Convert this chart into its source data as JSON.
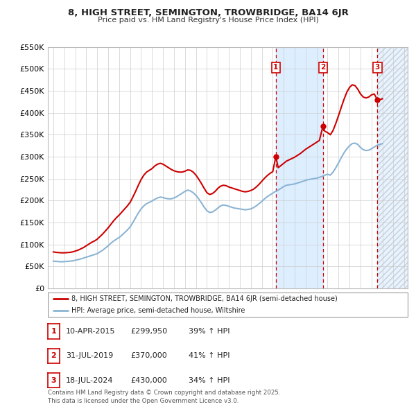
{
  "title": "8, HIGH STREET, SEMINGTON, TROWBRIDGE, BA14 6JR",
  "subtitle": "Price paid vs. HM Land Registry's House Price Index (HPI)",
  "hpi_label": "HPI: Average price, semi-detached house, Wiltshire",
  "price_label": "8, HIGH STREET, SEMINGTON, TROWBRIDGE, BA14 6JR (semi-detached house)",
  "price_color": "#cc0000",
  "hpi_color": "#8ab4d4",
  "background_color": "#ffffff",
  "grid_color": "#cccccc",
  "ylim": [
    0,
    550000
  ],
  "yticks": [
    0,
    50000,
    100000,
    150000,
    200000,
    250000,
    300000,
    350000,
    400000,
    450000,
    500000,
    550000
  ],
  "xlim_start": 1994.5,
  "xlim_end": 2027.3,
  "xticks": [
    1995,
    1996,
    1997,
    1998,
    1999,
    2000,
    2001,
    2002,
    2003,
    2004,
    2005,
    2006,
    2007,
    2008,
    2009,
    2010,
    2011,
    2012,
    2013,
    2014,
    2015,
    2016,
    2017,
    2018,
    2019,
    2020,
    2021,
    2022,
    2023,
    2024,
    2025,
    2026,
    2027
  ],
  "transactions": [
    {
      "label": "1",
      "date": "10-APR-2015",
      "year": 2015.28,
      "price": 299950,
      "hpi_pct": "39%",
      "hpi_dir": "↑"
    },
    {
      "label": "2",
      "date": "31-JUL-2019",
      "year": 2019.58,
      "price": 370000,
      "hpi_pct": "41%",
      "hpi_dir": "↑"
    },
    {
      "label": "3",
      "date": "18-JUL-2024",
      "year": 2024.54,
      "price": 430000,
      "hpi_pct": "34%",
      "hpi_dir": "↑"
    }
  ],
  "hpi_data": [
    [
      1995.0,
      62000
    ],
    [
      1995.25,
      61500
    ],
    [
      1995.5,
      61000
    ],
    [
      1995.75,
      60500
    ],
    [
      1996.0,
      61000
    ],
    [
      1996.25,
      61500
    ],
    [
      1996.5,
      62000
    ],
    [
      1996.75,
      62500
    ],
    [
      1997.0,
      64000
    ],
    [
      1997.25,
      65500
    ],
    [
      1997.5,
      67000
    ],
    [
      1997.75,
      69000
    ],
    [
      1998.0,
      71000
    ],
    [
      1998.25,
      73000
    ],
    [
      1998.5,
      75000
    ],
    [
      1998.75,
      77000
    ],
    [
      1999.0,
      79000
    ],
    [
      1999.25,
      83000
    ],
    [
      1999.5,
      87000
    ],
    [
      1999.75,
      92000
    ],
    [
      2000.0,
      97000
    ],
    [
      2000.25,
      103000
    ],
    [
      2000.5,
      108000
    ],
    [
      2000.75,
      112000
    ],
    [
      2001.0,
      116000
    ],
    [
      2001.25,
      121000
    ],
    [
      2001.5,
      127000
    ],
    [
      2001.75,
      133000
    ],
    [
      2002.0,
      140000
    ],
    [
      2002.25,
      150000
    ],
    [
      2002.5,
      161000
    ],
    [
      2002.75,
      172000
    ],
    [
      2003.0,
      181000
    ],
    [
      2003.25,
      188000
    ],
    [
      2003.5,
      193000
    ],
    [
      2003.75,
      196000
    ],
    [
      2004.0,
      199000
    ],
    [
      2004.25,
      203000
    ],
    [
      2004.5,
      206000
    ],
    [
      2004.75,
      208000
    ],
    [
      2005.0,
      207000
    ],
    [
      2005.25,
      205000
    ],
    [
      2005.5,
      204000
    ],
    [
      2005.75,
      204000
    ],
    [
      2006.0,
      206000
    ],
    [
      2006.25,
      209000
    ],
    [
      2006.5,
      213000
    ],
    [
      2006.75,
      217000
    ],
    [
      2007.0,
      221000
    ],
    [
      2007.25,
      224000
    ],
    [
      2007.5,
      222000
    ],
    [
      2007.75,
      218000
    ],
    [
      2008.0,
      212000
    ],
    [
      2008.25,
      204000
    ],
    [
      2008.5,
      195000
    ],
    [
      2008.75,
      185000
    ],
    [
      2009.0,
      177000
    ],
    [
      2009.25,
      173000
    ],
    [
      2009.5,
      174000
    ],
    [
      2009.75,
      178000
    ],
    [
      2010.0,
      183000
    ],
    [
      2010.25,
      188000
    ],
    [
      2010.5,
      190000
    ],
    [
      2010.75,
      189000
    ],
    [
      2011.0,
      187000
    ],
    [
      2011.25,
      185000
    ],
    [
      2011.5,
      183000
    ],
    [
      2011.75,
      182000
    ],
    [
      2012.0,
      181000
    ],
    [
      2012.25,
      180000
    ],
    [
      2012.5,
      179000
    ],
    [
      2012.75,
      180000
    ],
    [
      2013.0,
      181000
    ],
    [
      2013.25,
      184000
    ],
    [
      2013.5,
      188000
    ],
    [
      2013.75,
      193000
    ],
    [
      2014.0,
      198000
    ],
    [
      2014.25,
      204000
    ],
    [
      2014.5,
      209000
    ],
    [
      2014.75,
      213000
    ],
    [
      2015.0,
      217000
    ],
    [
      2015.25,
      221000
    ],
    [
      2015.5,
      224000
    ],
    [
      2015.75,
      228000
    ],
    [
      2016.0,
      232000
    ],
    [
      2016.25,
      235000
    ],
    [
      2016.5,
      236000
    ],
    [
      2016.75,
      237000
    ],
    [
      2017.0,
      238000
    ],
    [
      2017.25,
      240000
    ],
    [
      2017.5,
      242000
    ],
    [
      2017.75,
      244000
    ],
    [
      2018.0,
      246000
    ],
    [
      2018.25,
      248000
    ],
    [
      2018.5,
      249000
    ],
    [
      2018.75,
      250000
    ],
    [
      2019.0,
      251000
    ],
    [
      2019.25,
      253000
    ],
    [
      2019.5,
      255000
    ],
    [
      2019.75,
      258000
    ],
    [
      2020.0,
      260000
    ],
    [
      2020.25,
      258000
    ],
    [
      2020.5,
      265000
    ],
    [
      2020.75,
      275000
    ],
    [
      2021.0,
      286000
    ],
    [
      2021.25,
      298000
    ],
    [
      2021.5,
      309000
    ],
    [
      2021.75,
      318000
    ],
    [
      2022.0,
      325000
    ],
    [
      2022.25,
      330000
    ],
    [
      2022.5,
      331000
    ],
    [
      2022.75,
      328000
    ],
    [
      2023.0,
      321000
    ],
    [
      2023.25,
      316000
    ],
    [
      2023.5,
      314000
    ],
    [
      2023.75,
      315000
    ],
    [
      2024.0,
      318000
    ],
    [
      2024.25,
      322000
    ],
    [
      2024.5,
      326000
    ],
    [
      2024.75,
      328000
    ],
    [
      2025.0,
      330000
    ]
  ],
  "price_data": [
    [
      1995.0,
      83000
    ],
    [
      1995.25,
      82000
    ],
    [
      1995.5,
      81500
    ],
    [
      1995.75,
      81000
    ],
    [
      1996.0,
      81000
    ],
    [
      1996.25,
      81500
    ],
    [
      1996.5,
      82000
    ],
    [
      1996.75,
      83000
    ],
    [
      1997.0,
      85000
    ],
    [
      1997.25,
      87000
    ],
    [
      1997.5,
      90000
    ],
    [
      1997.75,
      93000
    ],
    [
      1998.0,
      97000
    ],
    [
      1998.25,
      101000
    ],
    [
      1998.5,
      105000
    ],
    [
      1998.75,
      108000
    ],
    [
      1999.0,
      112000
    ],
    [
      1999.25,
      118000
    ],
    [
      1999.5,
      124000
    ],
    [
      1999.75,
      131000
    ],
    [
      2000.0,
      138000
    ],
    [
      2000.25,
      146000
    ],
    [
      2000.5,
      154000
    ],
    [
      2000.75,
      161000
    ],
    [
      2001.0,
      167000
    ],
    [
      2001.25,
      174000
    ],
    [
      2001.5,
      181000
    ],
    [
      2001.75,
      188000
    ],
    [
      2002.0,
      196000
    ],
    [
      2002.25,
      208000
    ],
    [
      2002.5,
      221000
    ],
    [
      2002.75,
      235000
    ],
    [
      2003.0,
      248000
    ],
    [
      2003.25,
      258000
    ],
    [
      2003.5,
      265000
    ],
    [
      2003.75,
      269000
    ],
    [
      2004.0,
      273000
    ],
    [
      2004.25,
      279000
    ],
    [
      2004.5,
      283000
    ],
    [
      2004.75,
      285000
    ],
    [
      2005.0,
      283000
    ],
    [
      2005.25,
      279000
    ],
    [
      2005.5,
      275000
    ],
    [
      2005.75,
      271000
    ],
    [
      2006.0,
      268000
    ],
    [
      2006.25,
      266000
    ],
    [
      2006.5,
      265000
    ],
    [
      2006.75,
      265000
    ],
    [
      2007.0,
      267000
    ],
    [
      2007.25,
      270000
    ],
    [
      2007.5,
      269000
    ],
    [
      2007.75,
      265000
    ],
    [
      2008.0,
      258000
    ],
    [
      2008.25,
      249000
    ],
    [
      2008.5,
      239000
    ],
    [
      2008.75,
      228000
    ],
    [
      2009.0,
      218000
    ],
    [
      2009.25,
      214000
    ],
    [
      2009.5,
      216000
    ],
    [
      2009.75,
      221000
    ],
    [
      2010.0,
      228000
    ],
    [
      2010.25,
      233000
    ],
    [
      2010.5,
      235000
    ],
    [
      2010.75,
      234000
    ],
    [
      2011.0,
      231000
    ],
    [
      2011.25,
      229000
    ],
    [
      2011.5,
      227000
    ],
    [
      2011.75,
      225000
    ],
    [
      2012.0,
      223000
    ],
    [
      2012.25,
      221000
    ],
    [
      2012.5,
      220000
    ],
    [
      2012.75,
      221000
    ],
    [
      2013.0,
      223000
    ],
    [
      2013.25,
      226000
    ],
    [
      2013.5,
      231000
    ],
    [
      2013.75,
      237000
    ],
    [
      2014.0,
      244000
    ],
    [
      2014.25,
      251000
    ],
    [
      2014.5,
      257000
    ],
    [
      2014.75,
      262000
    ],
    [
      2015.0,
      266000
    ],
    [
      2015.28,
      299950
    ],
    [
      2015.5,
      275000
    ],
    [
      2015.75,
      280000
    ],
    [
      2016.0,
      285000
    ],
    [
      2016.25,
      290000
    ],
    [
      2016.5,
      293000
    ],
    [
      2016.75,
      296000
    ],
    [
      2017.0,
      299000
    ],
    [
      2017.25,
      303000
    ],
    [
      2017.5,
      307000
    ],
    [
      2017.75,
      312000
    ],
    [
      2018.0,
      317000
    ],
    [
      2018.25,
      321000
    ],
    [
      2018.5,
      325000
    ],
    [
      2018.75,
      329000
    ],
    [
      2019.0,
      333000
    ],
    [
      2019.25,
      337000
    ],
    [
      2019.58,
      370000
    ],
    [
      2019.75,
      358000
    ],
    [
      2020.0,
      355000
    ],
    [
      2020.25,
      350000
    ],
    [
      2020.5,
      360000
    ],
    [
      2020.75,
      376000
    ],
    [
      2021.0,
      394000
    ],
    [
      2021.25,
      413000
    ],
    [
      2021.5,
      431000
    ],
    [
      2021.75,
      447000
    ],
    [
      2022.0,
      458000
    ],
    [
      2022.25,
      464000
    ],
    [
      2022.5,
      462000
    ],
    [
      2022.75,
      454000
    ],
    [
      2023.0,
      443000
    ],
    [
      2023.25,
      436000
    ],
    [
      2023.5,
      434000
    ],
    [
      2023.75,
      436000
    ],
    [
      2024.0,
      441000
    ],
    [
      2024.25,
      443000
    ],
    [
      2024.54,
      430000
    ],
    [
      2024.75,
      430000
    ],
    [
      2025.0,
      432000
    ]
  ],
  "footer": "Contains HM Land Registry data © Crown copyright and database right 2025.\nThis data is licensed under the Open Government Licence v3.0.",
  "shade_regions": [
    {
      "start": 2015.28,
      "end": 2019.58,
      "color": "#ddeeff"
    },
    {
      "start": 2024.54,
      "end": 2027.3,
      "color": "#ddeeff",
      "hatch": true
    }
  ]
}
